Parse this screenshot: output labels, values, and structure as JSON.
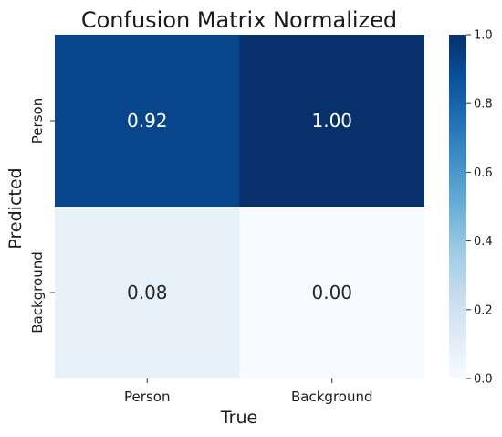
{
  "chart_data": {
    "type": "heatmap",
    "title": "Confusion Matrix Normalized",
    "xlabel": "True",
    "ylabel": "Predicted",
    "x_categories": [
      "Person",
      "Background"
    ],
    "y_categories": [
      "Person",
      "Background"
    ],
    "values": [
      [
        0.92,
        1.0
      ],
      [
        0.08,
        0.0
      ]
    ],
    "cell_labels": [
      [
        "0.92",
        "1.00"
      ],
      [
        "0.08",
        "0.00"
      ]
    ],
    "colorscale": "Blues",
    "vmin": 0.0,
    "vmax": 1.0,
    "colorbar_ticks": [
      "0.0",
      "0.2",
      "0.4",
      "0.6",
      "0.8",
      "1.0"
    ],
    "colorbar_tick_values": [
      0.0,
      0.2,
      0.4,
      0.6,
      0.8,
      1.0
    ]
  }
}
